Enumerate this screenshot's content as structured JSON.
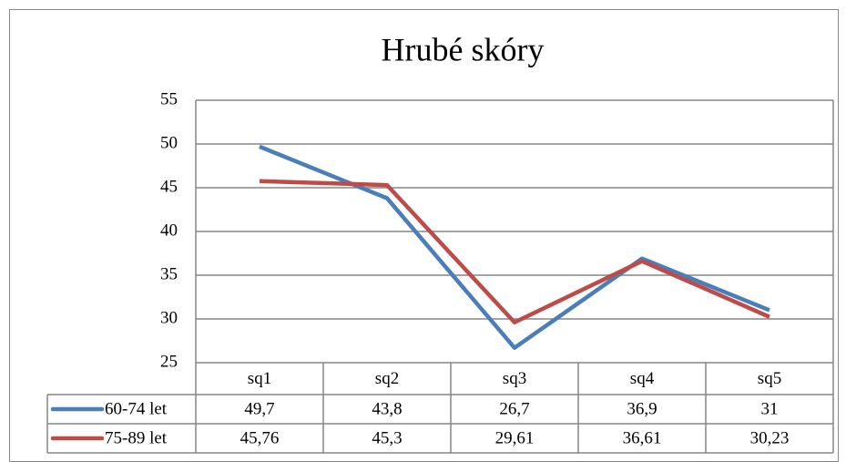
{
  "chart_data": {
    "type": "line",
    "title": "Hrubé skóry",
    "categories": [
      "sq1",
      "sq2",
      "sq3",
      "sq4",
      "sq5"
    ],
    "series": [
      {
        "name": "60-74 let",
        "color": "#4a7ebb",
        "values": [
          49.7,
          43.8,
          26.7,
          36.9,
          31
        ],
        "value_labels": [
          "49,7",
          "43,8",
          "26,7",
          "36,9",
          "31"
        ]
      },
      {
        "name": "75-89 let",
        "color": "#be4b48",
        "values": [
          45.76,
          45.3,
          29.61,
          36.61,
          30.23
        ],
        "value_labels": [
          "45,76",
          "45,3",
          "29,61",
          "36,61",
          "30,23"
        ]
      }
    ],
    "ylim": [
      25,
      55
    ],
    "yticks": [
      25,
      30,
      35,
      40,
      45,
      50,
      55
    ],
    "grid": true
  }
}
